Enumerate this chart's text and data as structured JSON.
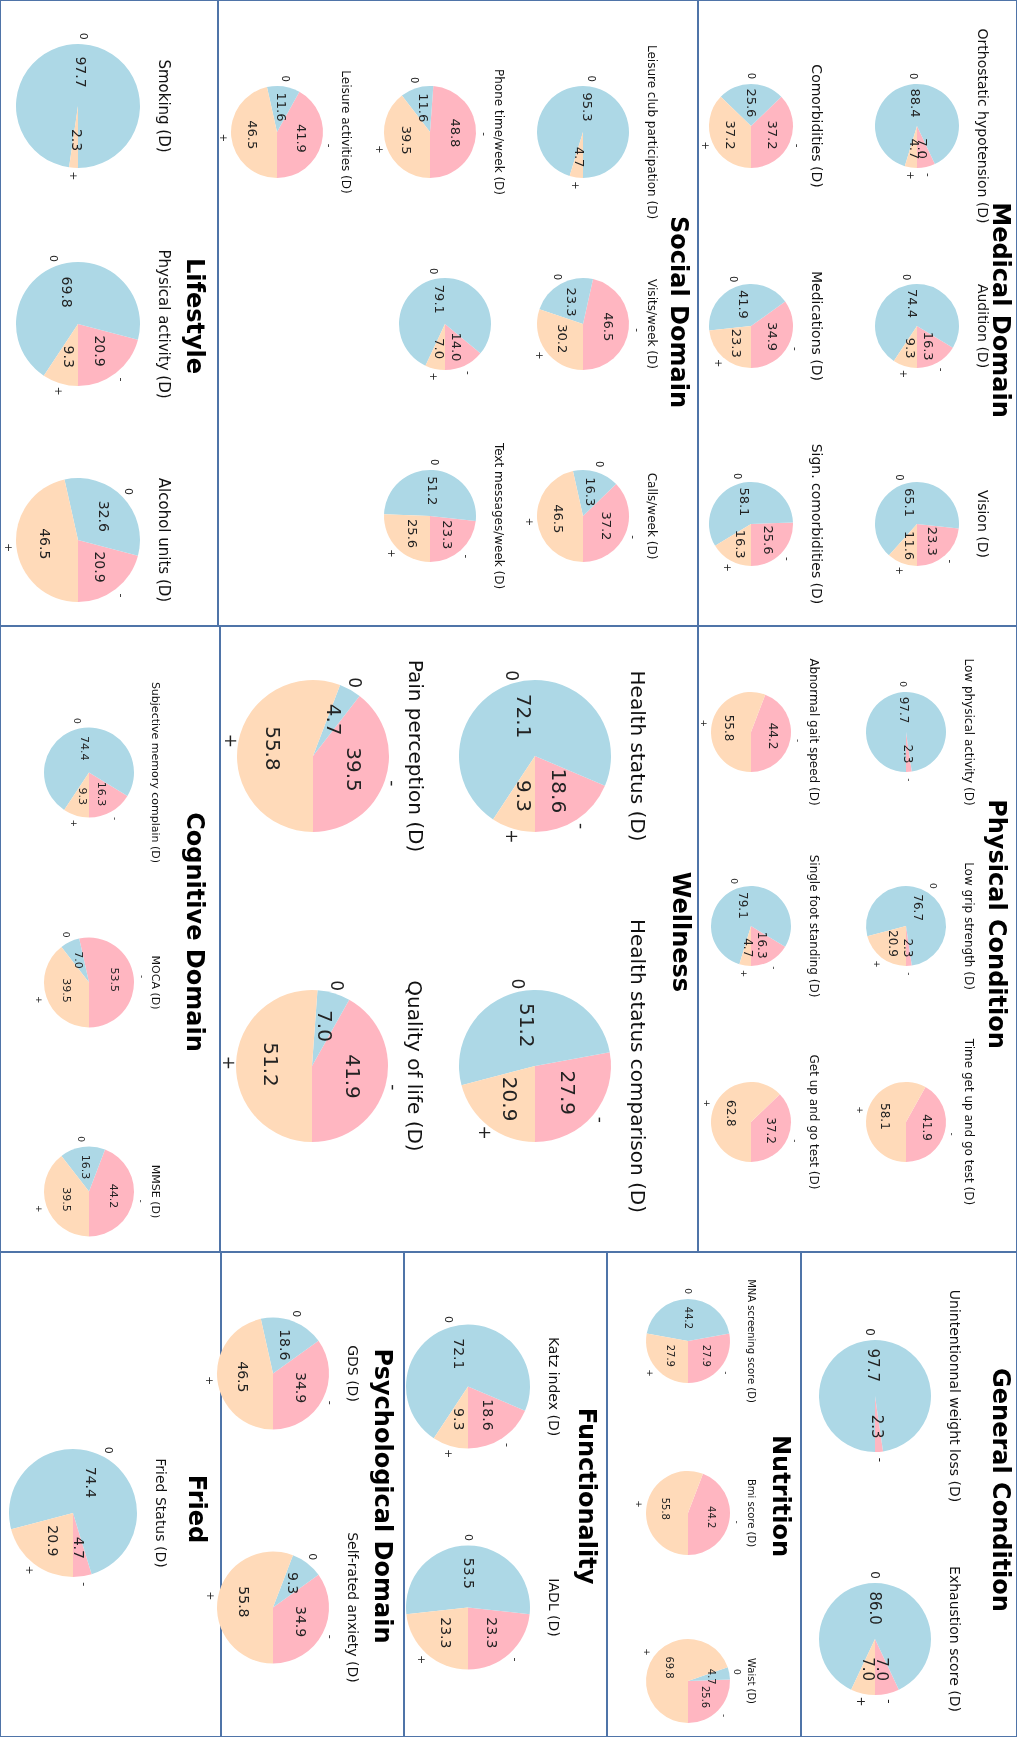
{
  "chart_data": [
    {
      "type": "pie",
      "title": "Orthostatic hypotension (D)",
      "annotations": [
        "Medical Domain"
      ],
      "categories": [
        "-",
        "0",
        "+"
      ],
      "values": [
        7.0,
        88.4,
        4.7
      ],
      "value_labels": [
        "7.0",
        "88.4",
        "4.7"
      ],
      "colors": [
        "#ffb6c1",
        "#add8e6",
        "#ffdab9"
      ]
    },
    {
      "type": "pie",
      "title": "Audition (D)",
      "categories": [
        "-",
        "0",
        "+"
      ],
      "values": [
        16.3,
        74.4,
        9.3
      ],
      "value_labels": [
        "16.3",
        "74.4",
        "9.3"
      ],
      "colors": [
        "#ffb6c1",
        "#add8e6",
        "#ffdab9"
      ]
    },
    {
      "type": "pie",
      "title": "Vision (D)",
      "categories": [
        "-",
        "0",
        "+"
      ],
      "values": [
        23.3,
        65.1,
        11.6
      ],
      "value_labels": [
        "23.3",
        "65.1",
        "11.6"
      ],
      "colors": [
        "#ffb6c1",
        "#add8e6",
        "#ffdab9"
      ]
    },
    {
      "type": "pie",
      "title": "Comorbidities (D)",
      "categories": [
        "-",
        "0",
        "+"
      ],
      "values": [
        37.2,
        25.6,
        37.2
      ],
      "value_labels": [
        "37.2",
        "25.6",
        "37.2"
      ],
      "colors": [
        "#ffb6c1",
        "#add8e6",
        "#ffdab9"
      ]
    },
    {
      "type": "pie",
      "title": "Medications (D)",
      "categories": [
        "-",
        "0",
        "+"
      ],
      "values": [
        34.9,
        41.9,
        23.3
      ],
      "value_labels": [
        "34.9",
        "41.9",
        "23.3"
      ],
      "colors": [
        "#ffb6c1",
        "#add8e6",
        "#ffdab9"
      ]
    },
    {
      "type": "pie",
      "title": "Sign. comorbidities (D)",
      "categories": [
        "-",
        "0",
        "+"
      ],
      "values": [
        25.6,
        58.1,
        16.3
      ],
      "value_labels": [
        "25.6",
        "58.1",
        "16.3"
      ],
      "colors": [
        "#ffb6c1",
        "#add8e6",
        "#ffdab9"
      ]
    },
    {
      "type": "pie",
      "title": "Leisure club participation (D)",
      "annotations": [
        "Social Domain"
      ],
      "categories": [
        "0",
        "+"
      ],
      "values": [
        95.3,
        4.7
      ],
      "value_labels": [
        "95.3",
        "4.7"
      ],
      "colors": [
        "#add8e6",
        "#ffdab9"
      ]
    },
    {
      "type": "pie",
      "title": "Visits/week (D)",
      "categories": [
        "-",
        "0",
        "+"
      ],
      "values": [
        46.5,
        23.3,
        30.2
      ],
      "value_labels": [
        "46.5",
        "23.3",
        "30.2"
      ],
      "colors": [
        "#ffb6c1",
        "#add8e6",
        "#ffdab9"
      ]
    },
    {
      "type": "pie",
      "title": "Calls/week (D)",
      "categories": [
        "-",
        "0",
        "+"
      ],
      "values": [
        37.2,
        16.3,
        46.5
      ],
      "value_labels": [
        "37.2",
        "16.3",
        "46.5"
      ],
      "colors": [
        "#ffb6c1",
        "#add8e6",
        "#ffdab9"
      ]
    },
    {
      "type": "pie",
      "title": "Phone time/week (D)",
      "categories": [
        "-",
        "0",
        "+"
      ],
      "values": [
        48.8,
        11.6,
        39.5
      ],
      "value_labels": [
        "48.8",
        "11.6",
        "39.5"
      ],
      "colors": [
        "#ffb6c1",
        "#add8e6",
        "#ffdab9"
      ]
    },
    {
      "type": "pie",
      "categories": [
        "-",
        "0",
        "+"
      ],
      "values": [
        14.0,
        79.1,
        7.0
      ],
      "value_labels": [
        "14.0",
        "79.1",
        "7.0"
      ],
      "colors": [
        "#ffb6c1",
        "#add8e6",
        "#ffdab9"
      ]
    },
    {
      "type": "pie",
      "title": "Text messages/week (D)",
      "categories": [
        "-",
        "0",
        "+"
      ],
      "values": [
        23.3,
        51.2,
        25.6
      ],
      "value_labels": [
        "23.3",
        "51.2",
        "25.6"
      ],
      "colors": [
        "#ffb6c1",
        "#add8e6",
        "#ffdab9"
      ]
    },
    {
      "type": "pie",
      "title": "Leisure activities (D)",
      "categories": [
        "-",
        "0",
        "+"
      ],
      "values": [
        41.9,
        11.6,
        46.5
      ],
      "value_labels": [
        "41.9",
        "11.6",
        "46.5"
      ],
      "colors": [
        "#ffb6c1",
        "#add8e6",
        "#ffdab9"
      ]
    },
    {
      "type": "pie",
      "title": "Smoking (D)",
      "annotations": [
        "Lifestyle"
      ],
      "categories": [
        "0",
        "+"
      ],
      "values": [
        97.7,
        2.3
      ],
      "value_labels": [
        "97.7",
        "2.3"
      ],
      "colors": [
        "#add8e6",
        "#ffdab9"
      ]
    },
    {
      "type": "pie",
      "title": "Physical activity (D)",
      "categories": [
        "-",
        "0",
        "+"
      ],
      "values": [
        20.9,
        69.8,
        9.3
      ],
      "value_labels": [
        "20.9",
        "69.8",
        "9.3"
      ],
      "colors": [
        "#ffb6c1",
        "#add8e6",
        "#ffdab9"
      ]
    },
    {
      "type": "pie",
      "title": "Alcohol units (D)",
      "categories": [
        "-",
        "0",
        "+"
      ],
      "values": [
        20.9,
        32.6,
        46.5
      ],
      "value_labels": [
        "20.9",
        "32.6",
        "46.5"
      ],
      "colors": [
        "#ffb6c1",
        "#add8e6",
        "#ffdab9"
      ]
    },
    {
      "type": "pie",
      "title": "Low physical activity (D)",
      "annotations": [
        "Physical Condition"
      ],
      "categories": [
        "-",
        "0"
      ],
      "values": [
        2.3,
        97.7
      ],
      "value_labels": [
        "2.3",
        "97.7"
      ],
      "colors": [
        "#ffb6c1",
        "#add8e6"
      ]
    },
    {
      "type": "pie",
      "title": "Low grip strength (D)",
      "categories": [
        "-",
        "0",
        "+"
      ],
      "values": [
        2.3,
        76.7,
        20.9
      ],
      "value_labels": [
        "2.3",
        "76.7",
        "20.9"
      ],
      "colors": [
        "#ffb6c1",
        "#add8e6",
        "#ffdab9"
      ]
    },
    {
      "type": "pie",
      "title": "Time get up and go test (D)",
      "categories": [
        "-",
        "+"
      ],
      "values": [
        41.9,
        58.1
      ],
      "value_labels": [
        "41.9",
        "58.1"
      ],
      "colors": [
        "#ffb6c1",
        "#ffdab9"
      ]
    },
    {
      "type": "pie",
      "title": "Abnormal gait speed (D)",
      "categories": [
        "-",
        "+"
      ],
      "values": [
        44.2,
        55.8
      ],
      "value_labels": [
        "44.2",
        "55.8"
      ],
      "colors": [
        "#ffb6c1",
        "#ffdab9"
      ]
    },
    {
      "type": "pie",
      "title": "Single foot standing (D)",
      "categories": [
        "-",
        "0",
        "+"
      ],
      "values": [
        16.3,
        79.1,
        4.7
      ],
      "value_labels": [
        "16.3",
        "79.1",
        "4.7"
      ],
      "colors": [
        "#ffb6c1",
        "#add8e6",
        "#ffdab9"
      ]
    },
    {
      "type": "pie",
      "title": "Get up and go test (D)",
      "categories": [
        "-",
        "+"
      ],
      "values": [
        37.2,
        62.8
      ],
      "value_labels": [
        "37.2",
        "62.8"
      ],
      "colors": [
        "#ffb6c1",
        "#ffdab9"
      ]
    },
    {
      "type": "pie",
      "title": "Health status (D)",
      "annotations": [
        "Wellness"
      ],
      "categories": [
        "-",
        "0",
        "+"
      ],
      "values": [
        18.6,
        72.1,
        9.3
      ],
      "value_labels": [
        "18.6",
        "72.1",
        "9.3"
      ],
      "colors": [
        "#ffb6c1",
        "#add8e6",
        "#ffdab9"
      ]
    },
    {
      "type": "pie",
      "title": "Health status comparison (D)",
      "categories": [
        "-",
        "0",
        "+"
      ],
      "values": [
        27.9,
        51.2,
        20.9
      ],
      "value_labels": [
        "27.9",
        "51.2",
        "20.9"
      ],
      "colors": [
        "#ffb6c1",
        "#add8e6",
        "#ffdab9"
      ]
    },
    {
      "type": "pie",
      "title": "Pain perception (D)",
      "categories": [
        "-",
        "0",
        "+"
      ],
      "values": [
        39.5,
        4.7,
        55.8
      ],
      "value_labels": [
        "39.5",
        "4.7",
        "55.8"
      ],
      "colors": [
        "#ffb6c1",
        "#add8e6",
        "#ffdab9"
      ]
    },
    {
      "type": "pie",
      "title": "Quality of life (D)",
      "categories": [
        "-",
        "0",
        "+"
      ],
      "values": [
        41.9,
        7.0,
        51.2
      ],
      "value_labels": [
        "41.9",
        "7.0",
        "51.2"
      ],
      "colors": [
        "#ffb6c1",
        "#add8e6",
        "#ffdab9"
      ]
    },
    {
      "type": "pie",
      "title": "Subjective memory complain (D)",
      "annotations": [
        "Cognitive Domain"
      ],
      "categories": [
        "-",
        "0",
        "+"
      ],
      "values": [
        16.3,
        74.4,
        9.3
      ],
      "value_labels": [
        "16.3",
        "74.4",
        "9.3"
      ],
      "colors": [
        "#ffb6c1",
        "#add8e6",
        "#ffdab9"
      ]
    },
    {
      "type": "pie",
      "title": "MOCA (D)",
      "categories": [
        "-",
        "0",
        "+"
      ],
      "values": [
        53.5,
        7.0,
        39.5
      ],
      "value_labels": [
        "53.5",
        "7.0",
        "39.5"
      ],
      "colors": [
        "#ffb6c1",
        "#add8e6",
        "#ffdab9"
      ]
    },
    {
      "type": "pie",
      "title": "MMSE (D)",
      "categories": [
        "-",
        "0",
        "+"
      ],
      "values": [
        44.2,
        16.3,
        39.5
      ],
      "value_labels": [
        "44.2",
        "16.3",
        "39.5"
      ],
      "colors": [
        "#ffb6c1",
        "#add8e6",
        "#ffdab9"
      ]
    },
    {
      "type": "pie",
      "title": "Unintentionnal weight loss (D)",
      "annotations": [
        "General Condition"
      ],
      "categories": [
        "-",
        "0"
      ],
      "values": [
        2.3,
        97.7
      ],
      "value_labels": [
        "2.3",
        "97.7"
      ],
      "colors": [
        "#ffb6c1",
        "#add8e6"
      ]
    },
    {
      "type": "pie",
      "title": "Exhaustion score (D)",
      "categories": [
        "-",
        "0",
        "+"
      ],
      "values": [
        7.0,
        86.0,
        7.0
      ],
      "value_labels": [
        "7.0",
        "86.0",
        "7.0"
      ],
      "colors": [
        "#ffb6c1",
        "#add8e6",
        "#ffdab9"
      ]
    },
    {
      "type": "pie",
      "title": "MNA screening score (D)",
      "annotations": [
        "Nutrition"
      ],
      "categories": [
        "-",
        "0",
        "+"
      ],
      "values": [
        27.9,
        44.2,
        27.9
      ],
      "value_labels": [
        "27.9",
        "44.2",
        "27.9"
      ],
      "colors": [
        "#ffb6c1",
        "#add8e6",
        "#ffdab9"
      ]
    },
    {
      "type": "pie",
      "title": "Bmi score (D)",
      "categories": [
        "-",
        "+"
      ],
      "values": [
        44.2,
        55.8
      ],
      "value_labels": [
        "44.2",
        "55.8"
      ],
      "colors": [
        "#ffb6c1",
        "#ffdab9"
      ]
    },
    {
      "type": "pie",
      "title": "Waist (D)",
      "categories": [
        "-",
        "0",
        "+"
      ],
      "values": [
        25.6,
        4.7,
        69.8
      ],
      "value_labels": [
        "25.6",
        "4.7",
        "69.8"
      ],
      "colors": [
        "#ffb6c1",
        "#add8e6",
        "#ffdab9"
      ]
    },
    {
      "type": "pie",
      "title": "Katz index (D)",
      "annotations": [
        "Functionality"
      ],
      "categories": [
        "-",
        "0",
        "+"
      ],
      "values": [
        18.6,
        72.1,
        9.3
      ],
      "value_labels": [
        "18.6",
        "72.1",
        "9.3"
      ],
      "colors": [
        "#ffb6c1",
        "#add8e6",
        "#ffdab9"
      ]
    },
    {
      "type": "pie",
      "title": "IADL (D)",
      "categories": [
        "-",
        "0",
        "+"
      ],
      "values": [
        23.3,
        53.5,
        23.3
      ],
      "value_labels": [
        "23.3",
        "53.5",
        "23.3"
      ],
      "colors": [
        "#ffb6c1",
        "#add8e6",
        "#ffdab9"
      ]
    },
    {
      "type": "pie",
      "title": "GDS (D)",
      "annotations": [
        "Psychological Domain"
      ],
      "categories": [
        "-",
        "0",
        "+"
      ],
      "values": [
        34.9,
        18.6,
        46.5
      ],
      "value_labels": [
        "34.9",
        "18.6",
        "46.5"
      ],
      "colors": [
        "#ffb6c1",
        "#add8e6",
        "#ffdab9"
      ]
    },
    {
      "type": "pie",
      "title": "Self-rated anxiety (D)",
      "categories": [
        "-",
        "0",
        "+"
      ],
      "values": [
        34.9,
        9.3,
        55.8
      ],
      "value_labels": [
        "34.9",
        "9.3",
        "55.8"
      ],
      "colors": [
        "#ffb6c1",
        "#add8e6",
        "#ffdab9"
      ]
    },
    {
      "type": "pie",
      "title": "Fried Status (D)",
      "annotations": [
        "Fried"
      ],
      "categories": [
        "-",
        "0",
        "+"
      ],
      "values": [
        4.7,
        74.4,
        20.9
      ],
      "value_labels": [
        "4.7",
        "74.4",
        "20.9"
      ],
      "colors": [
        "#ffb6c1",
        "#add8e6",
        "#ffdab9"
      ]
    }
  ]
}
